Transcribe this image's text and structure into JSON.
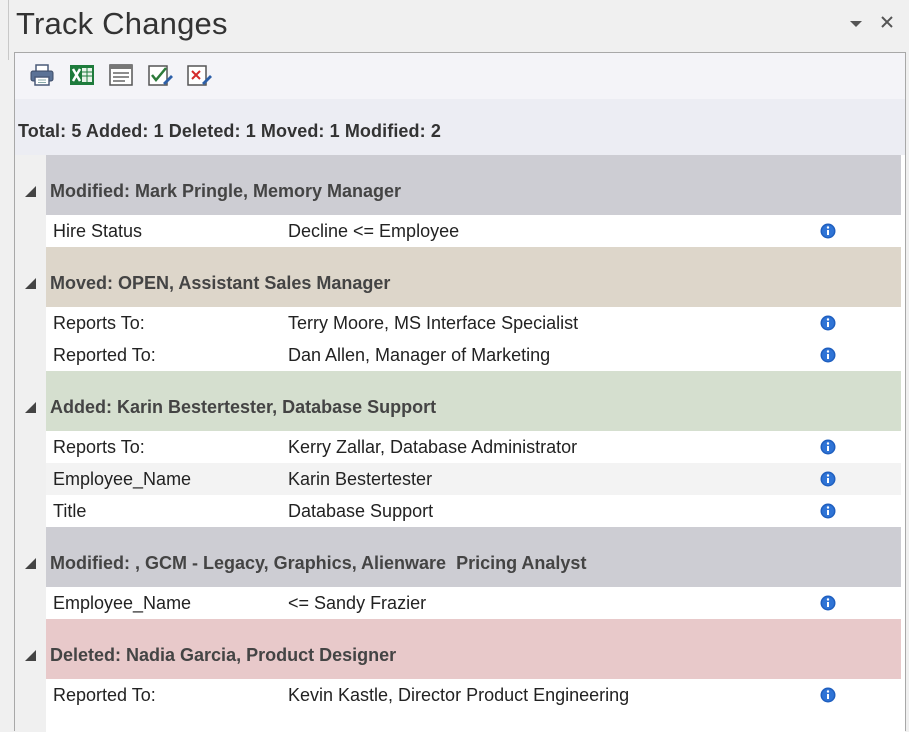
{
  "window": {
    "title": "Track Changes",
    "dropdown_icon": "chevron-down-icon",
    "close_icon": "close-icon"
  },
  "toolbar": {
    "buttons": [
      {
        "name": "print-button",
        "icon": "printer-icon"
      },
      {
        "name": "export-excel-button",
        "icon": "excel-icon"
      },
      {
        "name": "report-button",
        "icon": "document-list-icon"
      },
      {
        "name": "accept-changes-button",
        "icon": "accept-check-icon"
      },
      {
        "name": "reject-changes-button",
        "icon": "reject-x-icon"
      }
    ]
  },
  "summary": "Total: 5 Added: 1 Deleted: 1 Moved: 1 Modified: 2",
  "colors": {
    "modified": "#cdcdd3",
    "moved": "#ddd6ca",
    "added": "#d5dfcf",
    "deleted": "#e8c9ca",
    "info": "#1f5fbf"
  },
  "groups": [
    {
      "header": "Modified: Mark Pringle, Memory Manager",
      "type": "modified",
      "rows": [
        {
          "field": "Hire Status",
          "value": "Decline <= Employee"
        }
      ]
    },
    {
      "header": "Moved: OPEN, Assistant Sales Manager",
      "type": "moved",
      "rows": [
        {
          "field": "Reports To:",
          "value": "Terry Moore, MS Interface Specialist"
        },
        {
          "field": "Reported To:",
          "value": "Dan Allen, Manager of Marketing"
        }
      ]
    },
    {
      "header": "Added: Karin Bestertester, Database Support",
      "type": "added",
      "rows": [
        {
          "field": "Reports To:",
          "value": "Kerry Zallar, Database Administrator"
        },
        {
          "field": "Employee_Name",
          "value": "Karin Bestertester"
        },
        {
          "field": "Title",
          "value": "Database Support"
        }
      ]
    },
    {
      "header": "Modified: , GCM - Legacy, Graphics, Alienware  Pricing Analyst",
      "type": "modified",
      "rows": [
        {
          "field": "Employee_Name",
          "value": "<= Sandy Frazier"
        }
      ]
    },
    {
      "header": "Deleted: Nadia Garcia, Product Designer",
      "type": "deleted",
      "rows": [
        {
          "field": "Reported To:",
          "value": "Kevin Kastle, Director Product Engineering"
        }
      ]
    }
  ]
}
